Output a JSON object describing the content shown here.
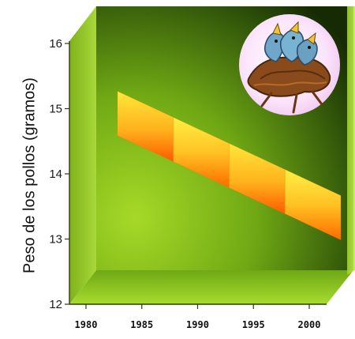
{
  "chart_data": {
    "type": "line",
    "title": "",
    "xlabel": "",
    "ylabel": "Peso de los pollos (gramos)",
    "x": [
      1980,
      1985,
      1990,
      1995,
      2000
    ],
    "series": [
      {
        "values": [
          15.0,
          14.6,
          14.2,
          13.8,
          13.4
        ]
      }
    ],
    "xlim": [
      1978,
      2003
    ],
    "ylim": [
      12,
      16.5
    ],
    "yticks": [
      "12",
      "13",
      "14",
      "15",
      "16"
    ],
    "xticks": [
      "1980",
      "1985",
      "1990",
      "1995",
      "2000"
    ],
    "grid": false,
    "legend": "none",
    "colors": {
      "wall_light": "#8fc41c",
      "wall_dark": "#1d3406",
      "floor": "#8ac21a",
      "ribbon_light": "#fff23a",
      "ribbon_dark": "#ff5a00"
    },
    "decoration": {
      "icon": "bird-nest-icon"
    }
  }
}
